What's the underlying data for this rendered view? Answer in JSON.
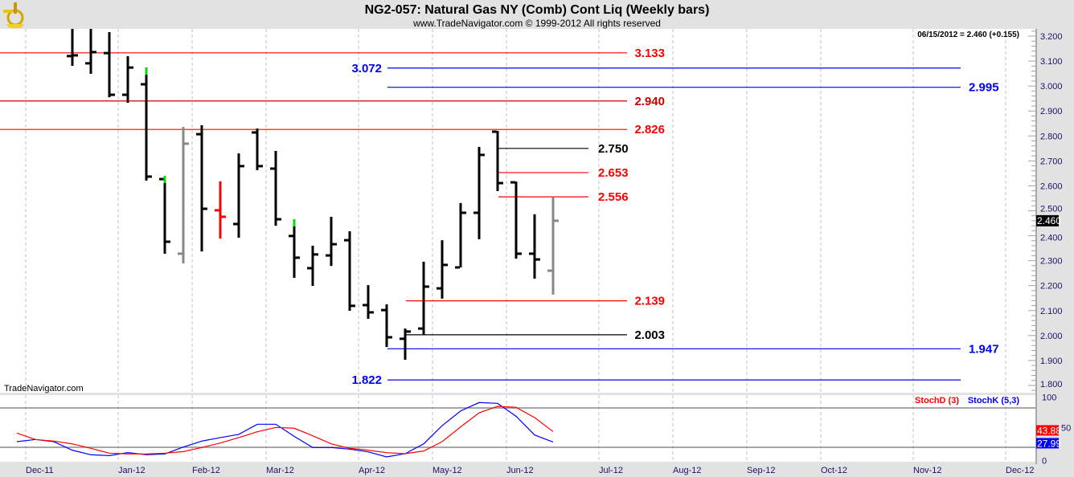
{
  "header": {
    "title": "NG2-057:  Natural Gas NY (Comb) Cont Liq  (Weekly bars)",
    "copyright": "www.TradeNavigator.com © 1999-2012 All rights reserved",
    "logo_icon": "sextant-logo-icon"
  },
  "readout": "06/15/2012 = 2.460 (+0.155)",
  "watermark": "TradeNavigator.com",
  "colors": {
    "up_bar": "#000000",
    "gray_bar": "#888888",
    "red_bar": "#ff0000",
    "highlight": "#00e000",
    "red_level": "#ff0000",
    "dark_red_level": "#cc0000",
    "blue_level": "#0000ff",
    "black_level": "#000000",
    "stoch_d": "#ff0000",
    "stoch_k": "#0000ff"
  },
  "chart_data": [
    {
      "type": "ohlc",
      "title": "NG2-057: Natural Gas NY (Comb) Cont Liq (Weekly bars)",
      "ylim": [
        1.78,
        3.23
      ],
      "y_ticks": [
        "3.200",
        "3.100",
        "3.000",
        "2.900",
        "2.800",
        "2.700",
        "2.600",
        "2.500",
        "2.400",
        "2.300",
        "2.200",
        "2.100",
        "2.000",
        "1.900",
        "1.800"
      ],
      "last_price_badge": "2.460",
      "x_ticks": [
        "Dec-11",
        "Jan-12",
        "Feb-12",
        "Mar-12",
        "Apr-12",
        "May-12",
        "Jun-12",
        "Jul-12",
        "Aug-12",
        "Sep-12",
        "Oct-12",
        "Nov-12",
        "Dec-12"
      ],
      "x_tick_week_index": [
        0,
        5,
        9,
        13,
        18,
        22,
        26,
        31,
        35,
        39,
        43,
        48,
        53
      ],
      "first_bar_week_index": 2.5,
      "bars": [
        {
          "o": 3.12,
          "h": 3.25,
          "l": 3.081,
          "c": 3.123
        },
        {
          "o": 3.091,
          "h": 3.25,
          "l": 3.049,
          "c": 3.136
        },
        {
          "o": 3.132,
          "h": 3.216,
          "l": 2.955,
          "c": 2.965
        },
        {
          "o": 2.965,
          "h": 3.12,
          "l": 2.933,
          "c": 3.074
        },
        {
          "o": 3.007,
          "h": 3.074,
          "l": 2.621,
          "c": 2.637,
          "tip": true
        },
        {
          "o": 2.627,
          "h": 2.64,
          "l": 2.328,
          "c": 2.376,
          "tip": true
        },
        {
          "o": 2.328,
          "h": 2.836,
          "l": 2.289,
          "c": 2.769,
          "color": "gray"
        },
        {
          "o": 2.807,
          "h": 2.843,
          "l": 2.337,
          "c": 2.508
        },
        {
          "o": 2.502,
          "h": 2.618,
          "l": 2.389,
          "c": 2.476,
          "color": "red"
        },
        {
          "o": 2.447,
          "h": 2.73,
          "l": 2.392,
          "c": 2.679
        },
        {
          "o": 2.814,
          "h": 2.83,
          "l": 2.663,
          "c": 2.679
        },
        {
          "o": 2.669,
          "h": 2.74,
          "l": 2.44,
          "c": 2.466
        },
        {
          "o": 2.399,
          "h": 2.466,
          "l": 2.231,
          "c": 2.312,
          "tip": true
        },
        {
          "o": 2.27,
          "h": 2.36,
          "l": 2.199,
          "c": 2.325
        },
        {
          "o": 2.321,
          "h": 2.476,
          "l": 2.279,
          "c": 2.366
        },
        {
          "o": 2.382,
          "h": 2.418,
          "l": 2.099,
          "c": 2.119
        },
        {
          "o": 2.122,
          "h": 2.202,
          "l": 2.067,
          "c": 2.093
        },
        {
          "o": 2.102,
          "h": 2.125,
          "l": 1.954,
          "c": 1.993
        },
        {
          "o": 1.987,
          "h": 2.028,
          "l": 1.903,
          "c": 2.016
        },
        {
          "o": 2.028,
          "h": 2.296,
          "l": 2.003,
          "c": 2.196
        },
        {
          "o": 2.189,
          "h": 2.382,
          "l": 2.148,
          "c": 2.283
        },
        {
          "o": 2.273,
          "h": 2.531,
          "l": 2.273,
          "c": 2.492
        },
        {
          "o": 2.492,
          "h": 2.756,
          "l": 2.386,
          "c": 2.724
        },
        {
          "o": 2.817,
          "h": 2.82,
          "l": 2.579,
          "c": 2.611
        },
        {
          "o": 2.614,
          "h": 2.617,
          "l": 2.308,
          "c": 2.328
        },
        {
          "o": 2.328,
          "h": 2.486,
          "l": 2.228,
          "c": 2.305
        },
        {
          "o": 2.26,
          "h": 2.553,
          "l": 2.164,
          "c": 2.46,
          "color": "gray"
        }
      ],
      "levels": [
        {
          "value": 3.133,
          "label": "3.133",
          "color": "red",
          "group": "major"
        },
        {
          "value": 2.94,
          "label": "2.940",
          "color": "darkred",
          "group": "major"
        },
        {
          "value": 2.826,
          "label": "2.826",
          "color": "red",
          "group": "major"
        },
        {
          "value": 3.072,
          "label": "3.072",
          "color": "blue",
          "group": "blue-left"
        },
        {
          "value": 2.995,
          "label": "2.995",
          "color": "blue",
          "group": "blue-right"
        },
        {
          "value": 1.947,
          "label": "1.947",
          "color": "blue",
          "group": "blue-right"
        },
        {
          "value": 1.822,
          "label": "1.822",
          "color": "blue",
          "group": "blue-left"
        },
        {
          "value": 2.75,
          "label": "2.750",
          "color": "black",
          "group": "swing-top"
        },
        {
          "value": 2.653,
          "label": "2.653",
          "color": "red",
          "group": "swing-top"
        },
        {
          "value": 2.556,
          "label": "2.556",
          "color": "red",
          "group": "swing-top"
        },
        {
          "value": 2.139,
          "label": "2.139",
          "color": "red",
          "group": "swing-bottom"
        },
        {
          "value": 2.003,
          "label": "2.003",
          "color": "black",
          "group": "swing-bottom"
        }
      ]
    },
    {
      "type": "line",
      "title": "Stochastic",
      "ylim": [
        0,
        100
      ],
      "y_ticks": [
        "100",
        "50",
        "0"
      ],
      "reference_lines": [
        80,
        20
      ],
      "legend": [
        {
          "name": "StochD (3)",
          "color": "#ff0000"
        },
        {
          "name": "StochK (5,3)",
          "color": "#0000ff"
        }
      ],
      "legend_position": "top-right",
      "series": [
        {
          "name": "StochK (5,3)",
          "last_label": "27.99",
          "values": [
            28.5,
            31.8,
            28.5,
            15.5,
            8.6,
            7.3,
            11.8,
            8.6,
            9.8,
            20.4,
            29.4,
            34.7,
            39.6,
            55.1,
            55.1,
            36.7,
            19.6,
            19.6,
            17.1,
            13.0,
            5.3,
            10.2,
            25.2,
            53.0,
            75.4,
            88.2,
            86.9,
            67.3,
            38.7,
            28.0
          ]
        },
        {
          "name": "StochD (3)",
          "last_label": "43.88",
          "values": [
            41.6,
            31.8,
            29.4,
            25.2,
            18.4,
            11.0,
            9.8,
            9.8,
            11.0,
            13.4,
            19.6,
            26.5,
            34.7,
            43.6,
            50.2,
            49.0,
            37.5,
            25.2,
            18.4,
            15.5,
            11.8,
            10.2,
            14.3,
            28.5,
            51.0,
            72.6,
            82.4,
            80.8,
            65.3,
            43.9
          ]
        }
      ]
    }
  ]
}
